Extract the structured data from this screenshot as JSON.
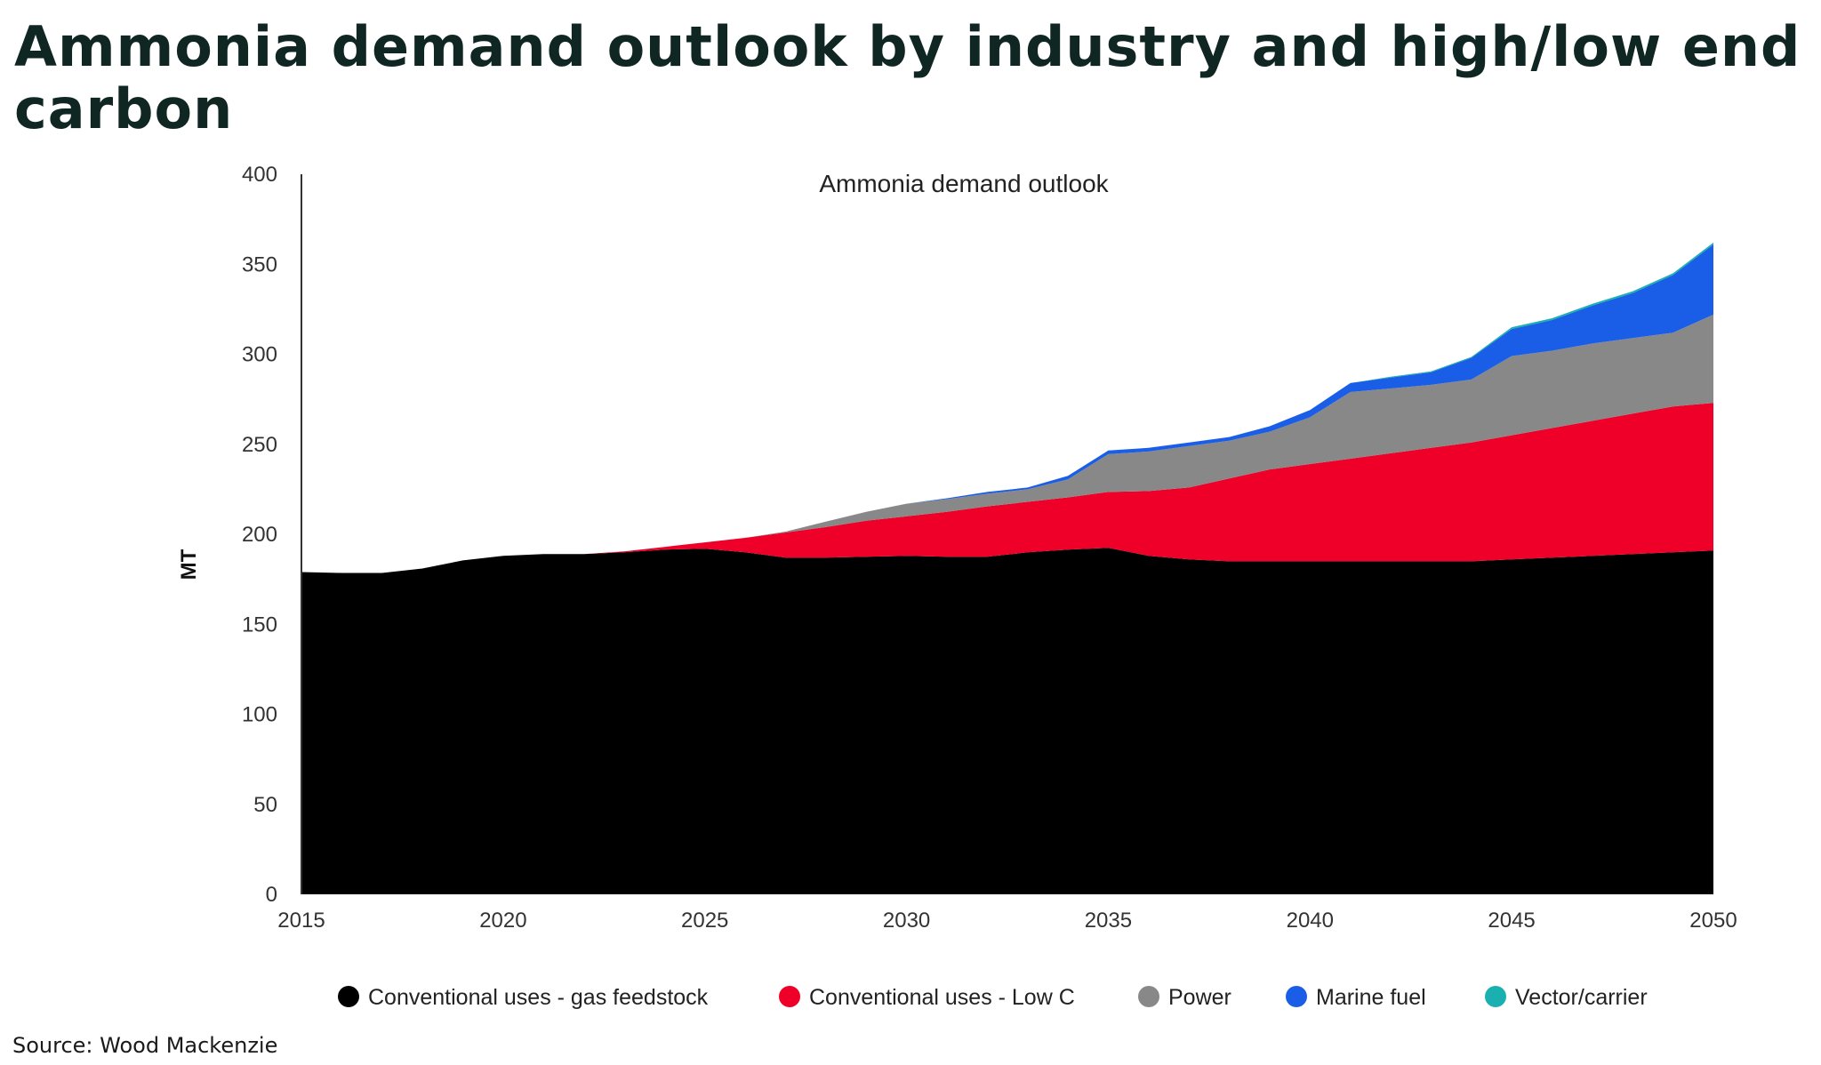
{
  "headline": "Ammonia demand outlook by industry and high/low end carbon",
  "source": "Source: Wood Mackenzie",
  "colors": {
    "gas_feedstock": "#000000",
    "low_c": "#ee0028",
    "power": "#888888",
    "marine_fuel": "#1a5ee8",
    "vector_carrier": "#1ab0b0"
  },
  "chart_data": {
    "type": "area",
    "stacked": true,
    "title": "Ammonia demand outlook",
    "xlabel": "",
    "ylabel": "MT",
    "xlim": [
      2015,
      2050
    ],
    "ylim": [
      0,
      400
    ],
    "x_ticks": [
      2015,
      2020,
      2025,
      2030,
      2035,
      2040,
      2045,
      2050
    ],
    "y_ticks": [
      0,
      50,
      100,
      150,
      200,
      250,
      300,
      350,
      400
    ],
    "grid": false,
    "legend_position": "bottom",
    "x": [
      2015,
      2016,
      2017,
      2018,
      2019,
      2020,
      2021,
      2022,
      2023,
      2024,
      2025,
      2026,
      2027,
      2028,
      2029,
      2030,
      2031,
      2032,
      2033,
      2034,
      2035,
      2036,
      2037,
      2038,
      2039,
      2040,
      2041,
      2042,
      2043,
      2044,
      2045,
      2046,
      2047,
      2048,
      2049,
      2050
    ],
    "series": [
      {
        "name": "Conventional uses - gas feedstock",
        "color_key": "gas_feedstock",
        "values": [
          179,
          178.5,
          178.5,
          181,
          185.5,
          188,
          189,
          189,
          190,
          191.5,
          192,
          190,
          187,
          187,
          187.5,
          188,
          187.5,
          187.5,
          190,
          191.5,
          192.5,
          188,
          186,
          185,
          185,
          185,
          185,
          185,
          185,
          185,
          186,
          187,
          188,
          189,
          190,
          191
        ]
      },
      {
        "name": "Conventional uses - Low C",
        "color_key": "low_c",
        "values": [
          0,
          0,
          0,
          0,
          0,
          0,
          0,
          0,
          0.5,
          1.5,
          3.5,
          8,
          14,
          17,
          20,
          22,
          25,
          28,
          28,
          29,
          31,
          36,
          40,
          46,
          51,
          54,
          57,
          60,
          63,
          66,
          69,
          72,
          75,
          78,
          81,
          82
        ]
      },
      {
        "name": "Power",
        "color_key": "power",
        "values": [
          0,
          0,
          0,
          0,
          0,
          0,
          0,
          0,
          0,
          0,
          0,
          0,
          0.5,
          3,
          5,
          7,
          7,
          7,
          7,
          10,
          21,
          22,
          23,
          21,
          21,
          26,
          37,
          36,
          35,
          35,
          44,
          43,
          43,
          42,
          41,
          49
        ]
      },
      {
        "name": "Marine fuel",
        "color_key": "marine_fuel",
        "values": [
          0,
          0,
          0,
          0,
          0,
          0,
          0,
          0,
          0,
          0,
          0,
          0,
          0,
          0,
          0,
          0,
          0.5,
          1,
          1,
          2,
          2,
          2,
          2,
          2,
          3,
          4,
          5,
          6,
          7,
          12,
          15,
          17,
          21,
          25,
          32,
          39
        ]
      },
      {
        "name": "Vector/carrier",
        "color_key": "vector_carrier",
        "values": [
          0,
          0,
          0,
          0,
          0,
          0,
          0,
          0,
          0,
          0,
          0,
          0,
          0,
          0,
          0,
          0,
          0,
          0,
          0,
          0,
          0,
          0,
          0,
          0,
          0,
          0,
          0,
          0.5,
          0.5,
          0.5,
          1,
          1,
          1,
          1,
          1,
          1
        ]
      }
    ]
  }
}
